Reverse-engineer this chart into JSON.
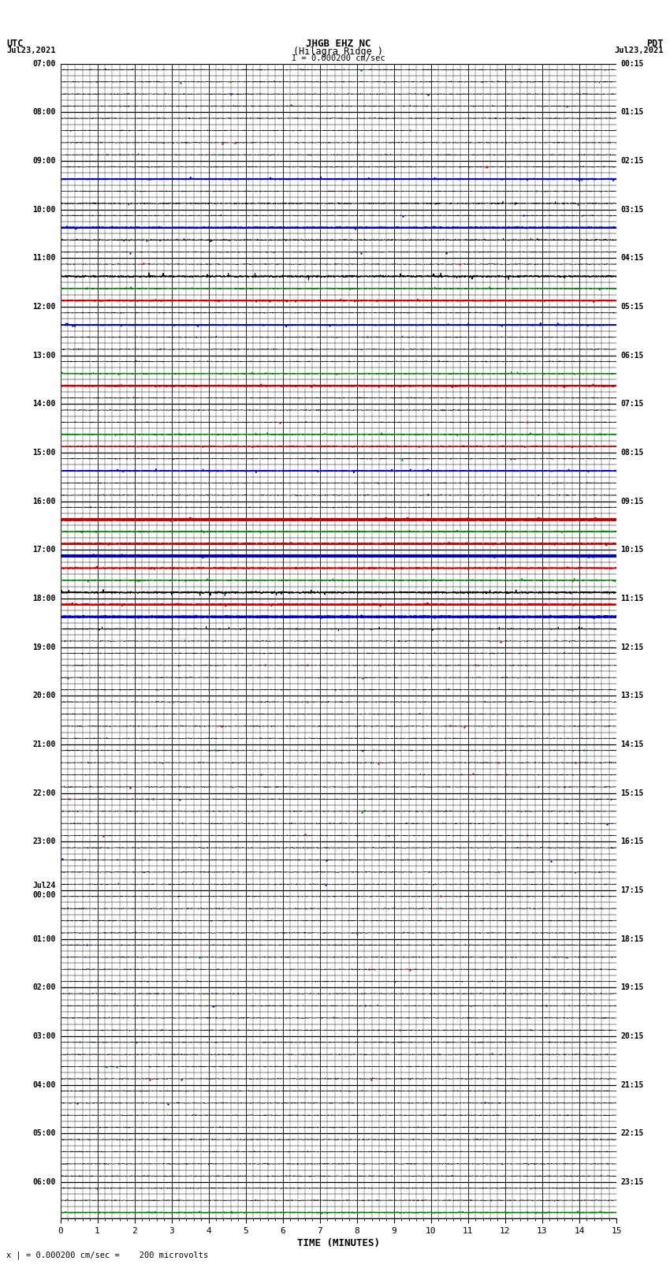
{
  "title_line1": "JHGB EHZ NC",
  "title_line2": "(Hilagra Ridge )",
  "title_line3": "I = 0.000200 cm/sec",
  "left_header_line1": "UTC",
  "left_header_line2": "Jul23,2021",
  "right_header_line1": "PDT",
  "right_header_line2": "Jul23,2021",
  "left_time_labels": [
    "07:00",
    "",
    "",
    "",
    "08:00",
    "",
    "",
    "",
    "09:00",
    "",
    "",
    "",
    "10:00",
    "",
    "",
    "",
    "11:00",
    "",
    "",
    "",
    "12:00",
    "",
    "",
    "",
    "13:00",
    "",
    "",
    "",
    "14:00",
    "",
    "",
    "",
    "15:00",
    "",
    "",
    "",
    "16:00",
    "",
    "",
    "",
    "17:00",
    "",
    "",
    "",
    "18:00",
    "",
    "",
    "",
    "19:00",
    "",
    "",
    "",
    "20:00",
    "",
    "",
    "",
    "21:00",
    "",
    "",
    "",
    "22:00",
    "",
    "",
    "",
    "23:00",
    "",
    "",
    "",
    "Jul24\n00:00",
    "",
    "",
    "",
    "01:00",
    "",
    "",
    "",
    "02:00",
    "",
    "",
    "",
    "03:00",
    "",
    "",
    "",
    "04:00",
    "",
    "",
    "",
    "05:00",
    "",
    "",
    "",
    "06:00",
    "",
    ""
  ],
  "right_time_labels": [
    "00:15",
    "",
    "",
    "",
    "01:15",
    "",
    "",
    "",
    "02:15",
    "",
    "",
    "",
    "03:15",
    "",
    "",
    "",
    "04:15",
    "",
    "",
    "",
    "05:15",
    "",
    "",
    "",
    "06:15",
    "",
    "",
    "",
    "07:15",
    "",
    "",
    "",
    "08:15",
    "",
    "",
    "",
    "09:15",
    "",
    "",
    "",
    "10:15",
    "",
    "",
    "",
    "11:15",
    "",
    "",
    "",
    "12:15",
    "",
    "",
    "",
    "13:15",
    "",
    "",
    "",
    "14:15",
    "",
    "",
    "",
    "15:15",
    "",
    "",
    "",
    "16:15",
    "",
    "",
    "",
    "17:15",
    "",
    "",
    "",
    "18:15",
    "",
    "",
    "",
    "19:15",
    "",
    "",
    "",
    "20:15",
    "",
    "",
    "",
    "21:15",
    "",
    "",
    "",
    "22:15",
    "",
    "",
    "",
    "23:15",
    "",
    ""
  ],
  "xlabel": "TIME (MINUTES)",
  "xmin": 0,
  "xmax": 15,
  "xticks": [
    0,
    1,
    2,
    3,
    4,
    5,
    6,
    7,
    8,
    9,
    10,
    11,
    12,
    13,
    14,
    15
  ],
  "footer": "x | = 0.000200 cm/sec =    200 microvolts",
  "num_rows": 95,
  "bg_color": "#ffffff",
  "figwidth": 8.5,
  "figheight": 16.13,
  "colored_rows": [
    {
      "row": 9,
      "color": "#0000cc",
      "lw": 1.2,
      "noise_scale": 0.05
    },
    {
      "row": 11,
      "color": "#000000",
      "lw": 0.5,
      "noise_scale": 0.06
    },
    {
      "row": 13,
      "color": "#0000cc",
      "lw": 1.5,
      "noise_scale": 0.04
    },
    {
      "row": 14,
      "color": "#000000",
      "lw": 0.5,
      "noise_scale": 0.06
    },
    {
      "row": 17,
      "color": "#000000",
      "lw": 0.8,
      "noise_scale": 0.1
    },
    {
      "row": 18,
      "color": "#008800",
      "lw": 0.8,
      "noise_scale": 0.05
    },
    {
      "row": 19,
      "color": "#cc0000",
      "lw": 1.2,
      "noise_scale": 0.04
    },
    {
      "row": 21,
      "color": "#0000cc",
      "lw": 1.2,
      "noise_scale": 0.05
    },
    {
      "row": 25,
      "color": "#008800",
      "lw": 0.8,
      "noise_scale": 0.05
    },
    {
      "row": 26,
      "color": "#cc0000",
      "lw": 1.5,
      "noise_scale": 0.04
    },
    {
      "row": 30,
      "color": "#008800",
      "lw": 0.8,
      "noise_scale": 0.05
    },
    {
      "row": 31,
      "color": "#cc0000",
      "lw": 1.0,
      "noise_scale": 0.04
    },
    {
      "row": 33,
      "color": "#0000cc",
      "lw": 1.0,
      "noise_scale": 0.05
    },
    {
      "row": 37,
      "color": "#cc0000",
      "lw": 2.5,
      "noise_scale": 0.03
    },
    {
      "row": 38,
      "color": "#008800",
      "lw": 1.0,
      "noise_scale": 0.04
    },
    {
      "row": 39,
      "color": "#cc0000",
      "lw": 1.5,
      "noise_scale": 0.04
    },
    {
      "row": 40,
      "color": "#0000cc",
      "lw": 2.5,
      "noise_scale": 0.03
    },
    {
      "row": 41,
      "color": "#cc0000",
      "lw": 1.2,
      "noise_scale": 0.04
    },
    {
      "row": 42,
      "color": "#008800",
      "lw": 0.8,
      "noise_scale": 0.05
    },
    {
      "row": 43,
      "color": "#000000",
      "lw": 0.8,
      "noise_scale": 0.1
    },
    {
      "row": 44,
      "color": "#cc0000",
      "lw": 1.5,
      "noise_scale": 0.04
    },
    {
      "row": 45,
      "color": "#0000cc",
      "lw": 2.0,
      "noise_scale": 0.03
    },
    {
      "row": 46,
      "color": "#000000",
      "lw": 0.6,
      "noise_scale": 0.06
    },
    {
      "row": 94,
      "color": "#008800",
      "lw": 1.0,
      "noise_scale": 0.04
    }
  ]
}
